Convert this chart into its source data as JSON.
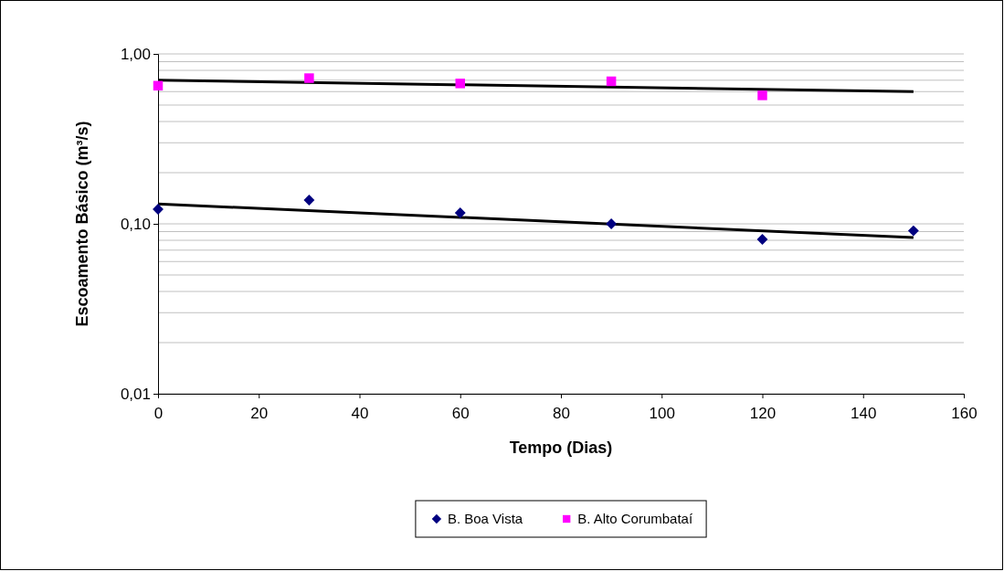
{
  "chart_data": {
    "type": "scatter",
    "xlabel": "Tempo (Dias)",
    "ylabel": "Escoamento Básico (m³/s)",
    "log": "y",
    "grid": "y",
    "legend": "bottom",
    "xlim": [
      0,
      160
    ],
    "xticks": [
      0,
      20,
      40,
      60,
      80,
      100,
      120,
      140,
      160
    ],
    "ylim": [
      0.01,
      1
    ],
    "yticks": [
      {
        "value": 0.01,
        "label": "0,01"
      },
      {
        "value": 0.02,
        "label": null
      },
      {
        "value": 0.03,
        "label": null
      },
      {
        "value": 0.04,
        "label": null
      },
      {
        "value": 0.05,
        "label": null
      },
      {
        "value": 0.06,
        "label": null
      },
      {
        "value": 0.07,
        "label": null
      },
      {
        "value": 0.08,
        "label": null
      },
      {
        "value": 0.09,
        "label": null
      },
      {
        "value": 0.1,
        "label": "0,10"
      },
      {
        "value": 0.2,
        "label": null
      },
      {
        "value": 0.3,
        "label": null
      },
      {
        "value": 0.4,
        "label": null
      },
      {
        "value": 0.5,
        "label": null
      },
      {
        "value": 0.6,
        "label": null
      },
      {
        "value": 0.7,
        "label": null
      },
      {
        "value": 0.8,
        "label": null
      },
      {
        "value": 0.9,
        "label": null
      },
      {
        "value": 1,
        "label": "1,00"
      }
    ],
    "series": [
      {
        "type": "line",
        "color": "#000000",
        "x": [
          0,
          150
        ],
        "values": [
          0.131,
          0.083
        ],
        "marker": "none"
      },
      {
        "type": "line",
        "color": "#000000",
        "x": [
          0,
          150
        ],
        "values": [
          0.7,
          0.6
        ],
        "marker": "none"
      },
      {
        "type": "scatter",
        "name": "B. Boa Vista",
        "color": "#000080",
        "marker": "diamond",
        "x": [
          0,
          30,
          60,
          90,
          120,
          150
        ],
        "values": [
          0.122,
          0.138,
          0.116,
          0.1,
          0.081,
          0.091
        ]
      },
      {
        "type": "scatter",
        "name": "B. Alto Corumbataí",
        "color": "#ff00ff",
        "marker": "square",
        "x": [
          0,
          30,
          60,
          90,
          120
        ],
        "values": [
          0.65,
          0.72,
          0.67,
          0.69,
          0.57
        ]
      }
    ]
  }
}
